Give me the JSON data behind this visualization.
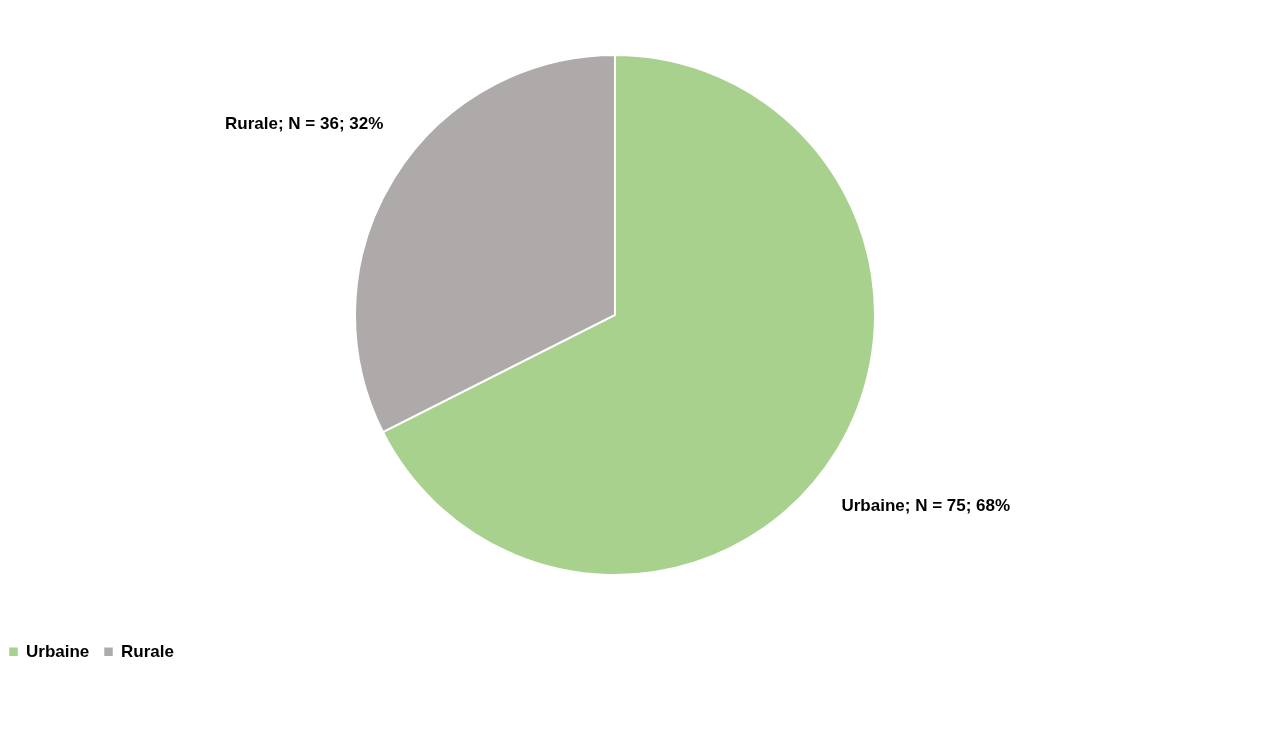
{
  "chart_data": {
    "type": "pie",
    "categories": [
      "Urbaine",
      "Rurale"
    ],
    "values": [
      75,
      36
    ],
    "colors": [
      "#a9d18e",
      "#aeaaaa"
    ],
    "value_labels": [
      "Urbaine; N = 75; 68%",
      "Rurale; N = 36; 32%"
    ],
    "legend": "bottom"
  }
}
